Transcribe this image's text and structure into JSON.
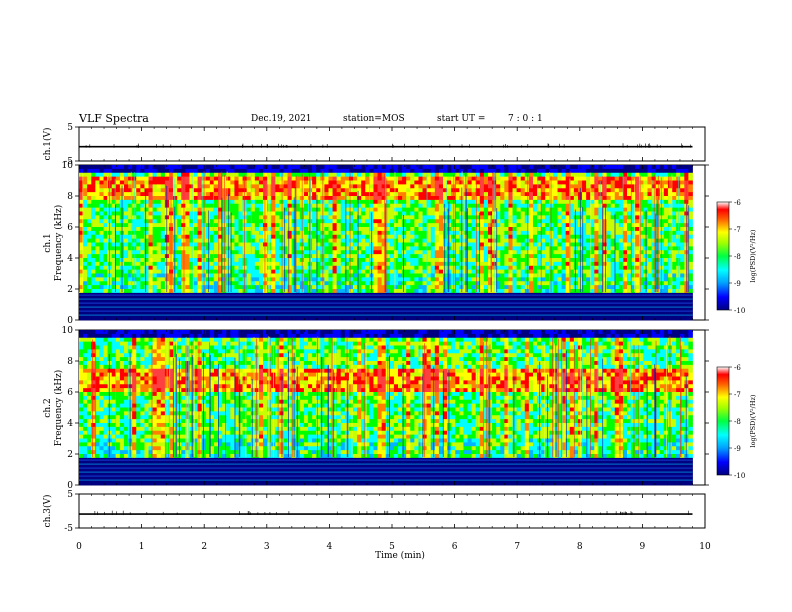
{
  "header": {
    "title": "VLF Spectra",
    "date": "Dec.19, 2021",
    "station": "station=MOS",
    "start_label": "start  UT  =",
    "start_time": "7 : 0  : 1"
  },
  "chart_data": [
    {
      "type": "line",
      "panel": "ch1-waveform",
      "ylabel": "ch.1(V)",
      "ylim": [
        -5,
        5
      ],
      "yticks": [
        "5",
        "-5"
      ],
      "xlim": [
        0,
        10
      ],
      "x": [
        0,
        9.8
      ],
      "values": [
        -0.8,
        -0.8
      ]
    },
    {
      "type": "heatmap",
      "panel": "ch1-spectrogram",
      "ylabel": "ch.1\nFrequency (kHz)",
      "ylabel_line1": "ch.1",
      "ylabel_line2": "Frequency (kHz)",
      "ylim": [
        0,
        10
      ],
      "yticks": [
        "0",
        "2",
        "4",
        "6",
        "8",
        "10"
      ],
      "xlim": [
        0,
        9.8
      ],
      "colorbar": {
        "label": "log(PSD)(V²/Hz)",
        "range": [
          -10,
          -6
        ],
        "ticks": [
          "-6",
          "-7",
          "-8",
          "-9",
          "-10"
        ]
      },
      "strong_band_khz": [
        7.8,
        9.2
      ],
      "cutoff_khz": 1.8
    },
    {
      "type": "heatmap",
      "panel": "ch2-spectrogram",
      "ylabel_line1": "ch.2",
      "ylabel_line2": "Frequency (kHz)",
      "ylim": [
        0,
        10
      ],
      "yticks": [
        "0",
        "2",
        "4",
        "6",
        "8",
        "10"
      ],
      "xlim": [
        0,
        9.8
      ],
      "colorbar": {
        "label": "log(PSD)(V²/Hz)",
        "range": [
          -10,
          -6
        ],
        "ticks": [
          "-6",
          "-7",
          "-8",
          "-9",
          "-10"
        ]
      },
      "strong_band_khz": [
        6.0,
        7.6
      ],
      "cutoff_khz": 1.8
    },
    {
      "type": "line",
      "panel": "ch3-waveform",
      "ylabel": "ch.3(V)",
      "ylim": [
        -5,
        5
      ],
      "yticks": [
        "5",
        "-5"
      ],
      "xlim": [
        0,
        10
      ],
      "x": [
        0,
        9.8
      ],
      "values": [
        -0.9,
        -0.9
      ],
      "xlabel": "Time (min)",
      "xticks": [
        "0",
        "1",
        "2",
        "3",
        "4",
        "5",
        "6",
        "7",
        "8",
        "9",
        "10"
      ]
    }
  ],
  "colors": {
    "colormap": [
      "#000080",
      "#0000ff",
      "#00b4ff",
      "#00ffff",
      "#00ff00",
      "#c8ff00",
      "#ffff00",
      "#ff8000",
      "#ff0000",
      "#ff4040",
      "#ffffff"
    ],
    "axis": "#000000"
  }
}
